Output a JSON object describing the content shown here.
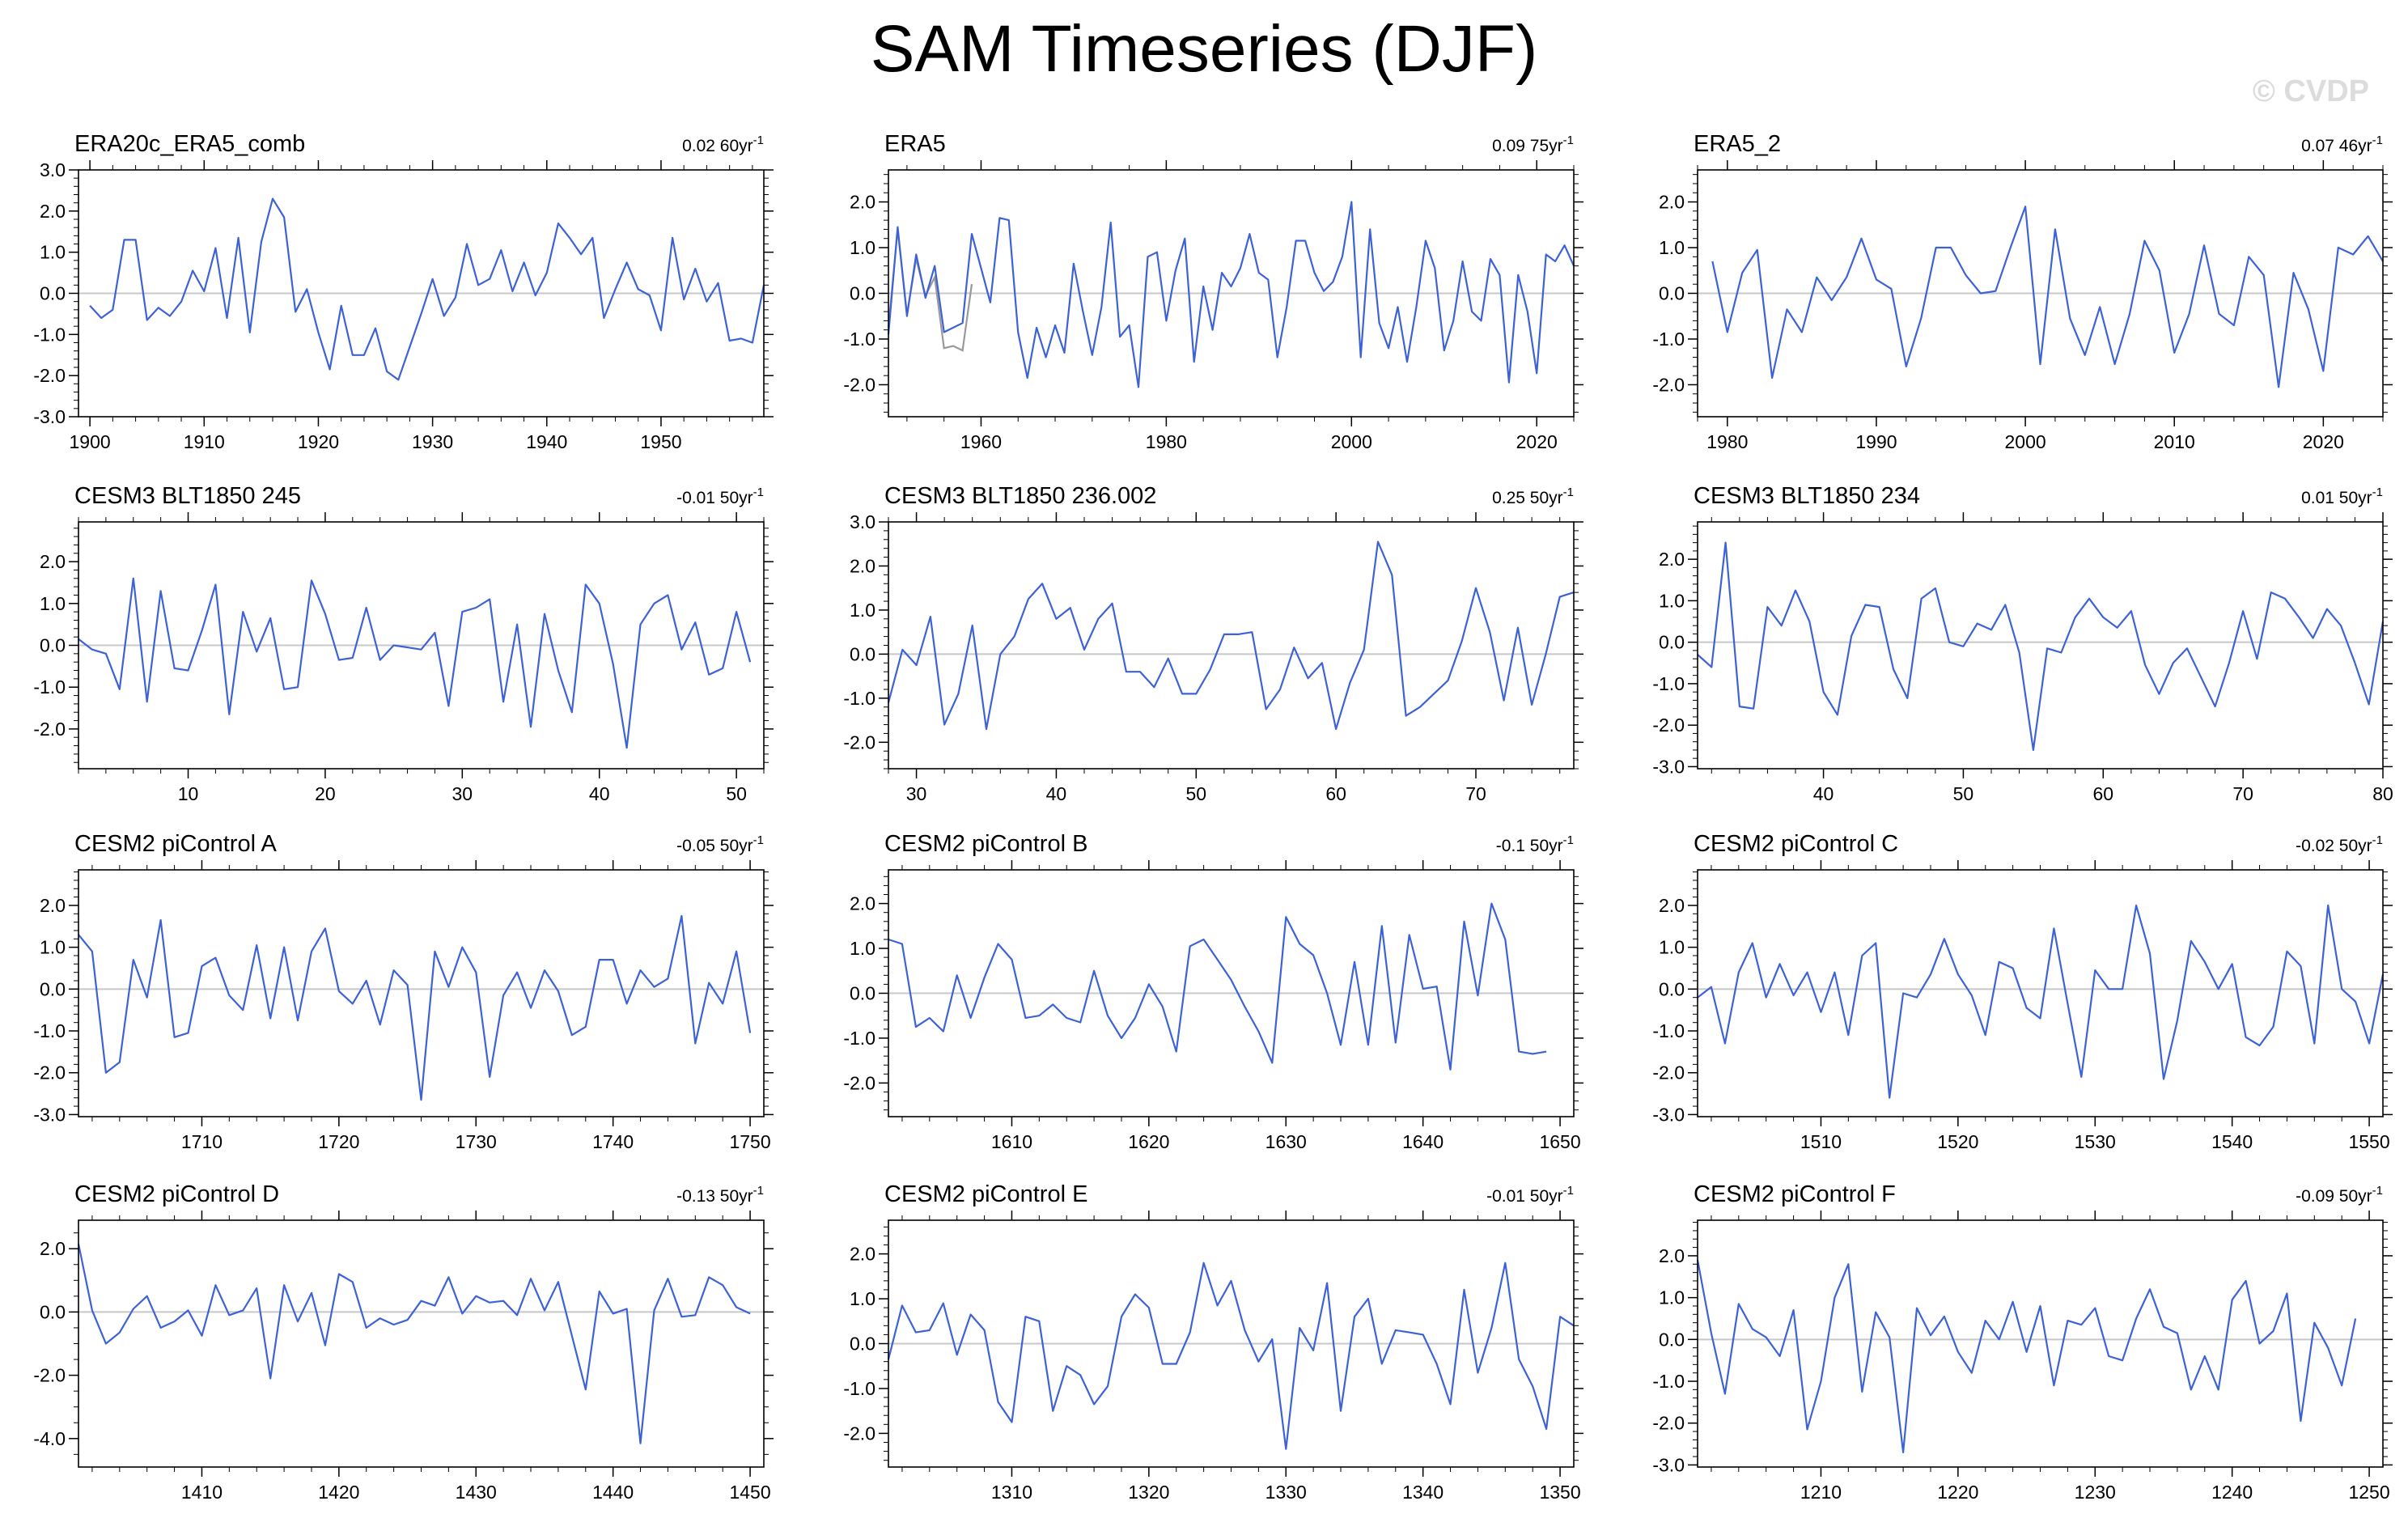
{
  "title": "SAM Timeseries (DJF)",
  "watermark": "© CVDP",
  "colors": {
    "line": "#3d62d6",
    "overlay": "#999999",
    "zero": "#c8c8c8",
    "frame": "#000000"
  },
  "chart_data": [
    {
      "type": "line",
      "title": "ERA20c_ERA5_comb",
      "trend": "0.02 60yr",
      "trend_exp": "-1",
      "xlim": [
        1899,
        1959
      ],
      "xticks": [
        1900,
        1910,
        1920,
        1930,
        1940,
        1950
      ],
      "ylim": [
        -3,
        3
      ],
      "yticks": [
        "3.0",
        "2.0",
        "1.0",
        "0.0",
        "-1.0",
        "-2.0",
        "-3.0"
      ],
      "x0": 1900,
      "values": [
        -0.3,
        -0.6,
        -0.4,
        1.3,
        1.3,
        -0.65,
        -0.35,
        -0.55,
        -0.2,
        0.55,
        0.05,
        1.1,
        -0.6,
        1.35,
        -0.95,
        1.25,
        2.3,
        1.85,
        -0.45,
        0.1,
        -0.95,
        -1.85,
        -0.3,
        -1.5,
        -1.5,
        -0.85,
        -1.9,
        -2.1,
        -1.3,
        -0.5,
        0.35,
        -0.55,
        -0.1,
        1.2,
        0.2,
        0.35,
        1.05,
        0.05,
        0.75,
        -0.05,
        0.5,
        1.7,
        1.35,
        0.95,
        1.35,
        -0.6,
        0.1,
        0.75,
        0.1,
        -0.05,
        -0.9,
        1.35,
        -0.15,
        0.6,
        -0.2,
        0.25,
        -1.15,
        -1.1,
        -1.2,
        0.2
      ]
    },
    {
      "type": "line",
      "title": "ERA5",
      "trend": "0.09 75yr",
      "trend_exp": "-1",
      "xlim": [
        1950,
        2024
      ],
      "xticks": [
        1960,
        1980,
        2000,
        2020
      ],
      "ylim": [
        -2.7,
        2.7
      ],
      "yticks": [
        "2.0",
        "1.0",
        "0.0",
        "-1.0",
        "-2.0"
      ],
      "x0": 1950,
      "values": [
        -0.9,
        1.45,
        -0.5,
        0.85,
        -0.1,
        0.6,
        -0.85,
        -0.75,
        -0.65,
        1.3,
        0.55,
        -0.2,
        1.65,
        1.6,
        -0.85,
        -1.85,
        -0.75,
        -1.4,
        -0.7,
        -1.3,
        0.65,
        -0.4,
        -1.35,
        -0.3,
        1.55,
        -0.95,
        -0.7,
        -2.05,
        0.8,
        0.9,
        -0.6,
        0.5,
        1.2,
        -1.5,
        0.15,
        -0.8,
        0.45,
        0.15,
        0.55,
        1.3,
        0.45,
        0.3,
        -1.4,
        -0.3,
        1.15,
        1.15,
        0.45,
        0.05,
        0.25,
        0.8,
        2.0,
        -1.4,
        1.4,
        -0.65,
        -1.2,
        -0.3,
        -1.5,
        -0.3,
        1.15,
        0.55,
        -1.25,
        -0.6,
        0.7,
        -0.4,
        -0.6,
        0.75,
        0.4,
        -1.95,
        0.4,
        -0.4,
        -1.75,
        0.85,
        0.7,
        1.05,
        0.6
      ],
      "overlay": {
        "x0": 1950,
        "values": [
          -0.75,
          1.4,
          -0.45,
          0.75,
          -0.05,
          0.35,
          -1.2,
          -1.15,
          -1.25,
          0.2
        ]
      }
    },
    {
      "type": "line",
      "title": "ERA5_2",
      "trend": "0.07 46yr",
      "trend_exp": "-1",
      "xlim": [
        1978,
        2024
      ],
      "xticks": [
        1980,
        1990,
        2000,
        2010,
        2020
      ],
      "ylim": [
        -2.7,
        2.7
      ],
      "yticks": [
        "2.0",
        "1.0",
        "0.0",
        "-1.0",
        "-2.0"
      ],
      "x0": 1979,
      "values": [
        0.7,
        -0.85,
        0.45,
        0.95,
        -1.85,
        -0.35,
        -0.85,
        0.35,
        -0.15,
        0.35,
        1.2,
        0.3,
        0.1,
        -1.6,
        -0.55,
        1.0,
        1.0,
        0.4,
        -0.0,
        0.05,
        1.0,
        1.9,
        -1.55,
        1.4,
        -0.55,
        -1.35,
        -0.3,
        -1.55,
        -0.45,
        1.15,
        0.5,
        -1.3,
        -0.45,
        1.05,
        -0.45,
        -0.7,
        0.8,
        0.4,
        -2.05,
        0.45,
        -0.35,
        -1.7,
        1.0,
        0.85,
        1.25,
        0.7
      ]
    },
    {
      "type": "line",
      "title": "CESM3 BLT1850 245",
      "trend": "-0.01 50yr",
      "trend_exp": "-1",
      "xlim": [
        2,
        52
      ],
      "xticks": [
        10,
        20,
        30,
        40,
        50
      ],
      "ylim": [
        -2.95,
        2.95
      ],
      "yticks": [
        "2.0",
        "1.0",
        "0.0",
        "-1.0",
        "-2.0"
      ],
      "x0": 2,
      "values": [
        0.15,
        -0.1,
        -0.2,
        -1.05,
        1.6,
        -1.35,
        1.3,
        -0.55,
        -0.6,
        0.35,
        1.45,
        -1.65,
        0.8,
        -0.15,
        0.65,
        -1.05,
        -1.0,
        1.55,
        0.75,
        -0.35,
        -0.3,
        0.9,
        -0.35,
        0.0,
        -0.05,
        -0.1,
        0.3,
        -1.45,
        0.8,
        0.9,
        1.1,
        -1.35,
        0.5,
        -1.95,
        0.75,
        -0.6,
        -1.6,
        1.45,
        1.0,
        -0.45,
        -2.45,
        0.5,
        1.0,
        1.2,
        -0.1,
        0.55,
        -0.7,
        -0.55,
        0.8,
        -0.4
      ]
    },
    {
      "type": "line",
      "title": "CESM3 BLT1850 236.002",
      "trend": "0.25 50yr",
      "trend_exp": "-1",
      "xlim": [
        28,
        77
      ],
      "xticks": [
        30,
        40,
        50,
        60,
        70
      ],
      "ylim": [
        -2.6,
        3.0
      ],
      "yticks": [
        "3.0",
        "2.0",
        "1.0",
        "0.0",
        "-1.0",
        "-2.0"
      ],
      "x0": 28,
      "values": [
        -1.1,
        0.1,
        -0.25,
        0.85,
        -1.6,
        -0.9,
        0.65,
        -1.7,
        -0.0,
        0.4,
        1.25,
        1.6,
        0.8,
        1.05,
        0.1,
        0.8,
        1.15,
        -0.4,
        -0.4,
        -0.75,
        -0.1,
        -0.9,
        -0.9,
        -0.35,
        0.45,
        0.45,
        0.5,
        -1.25,
        -0.8,
        0.15,
        -0.55,
        -0.2,
        -1.7,
        -0.65,
        0.1,
        2.55,
        1.8,
        -1.4,
        -1.2,
        -0.9,
        -0.6,
        0.3,
        1.5,
        0.5,
        -1.05,
        0.6,
        -1.15,
        0.0,
        1.3,
        1.4
      ]
    },
    {
      "type": "line",
      "title": "CESM3 BLT1850 234",
      "trend": "0.01 50yr",
      "trend_exp": "-1",
      "xlim": [
        31,
        80
      ],
      "xticks": [
        40,
        50,
        60,
        70,
        80
      ],
      "ylim": [
        -3.05,
        2.9
      ],
      "yticks": [
        "2.0",
        "1.0",
        "0.0",
        "-1.0",
        "-2.0",
        "-3.0"
      ],
      "x0": 31,
      "values": [
        -0.3,
        -0.6,
        2.4,
        -1.55,
        -1.6,
        0.85,
        0.4,
        1.25,
        0.5,
        -1.2,
        -1.75,
        0.15,
        0.9,
        0.85,
        -0.65,
        -1.35,
        1.05,
        1.3,
        0.0,
        -0.1,
        0.45,
        0.3,
        0.9,
        -0.25,
        -2.6,
        -0.15,
        -0.25,
        0.6,
        1.05,
        0.6,
        0.35,
        0.75,
        -0.55,
        -1.25,
        -0.5,
        -0.15,
        -0.85,
        -1.55,
        -0.5,
        0.75,
        -0.4,
        1.2,
        1.05,
        0.6,
        0.1,
        0.8,
        0.4,
        -0.5,
        -1.5,
        0.5
      ]
    },
    {
      "type": "line",
      "title": "CESM2 piControl A",
      "trend": "-0.05 50yr",
      "trend_exp": "-1",
      "xlim": [
        1701,
        1751
      ],
      "xticks": [
        1710,
        1720,
        1730,
        1740,
        1750
      ],
      "ylim": [
        -3.05,
        2.85
      ],
      "yticks": [
        "2.0",
        "1.0",
        "0.0",
        "-1.0",
        "-2.0",
        "-3.0"
      ],
      "x0": 1701,
      "values": [
        1.3,
        0.9,
        -2.0,
        -1.75,
        0.7,
        -0.2,
        1.65,
        -1.15,
        -1.05,
        0.55,
        0.75,
        -0.15,
        -0.5,
        1.05,
        -0.7,
        1.0,
        -0.75,
        0.9,
        1.45,
        -0.05,
        -0.35,
        0.2,
        -0.85,
        0.45,
        0.1,
        -2.65,
        0.9,
        0.05,
        1.0,
        0.4,
        -2.1,
        -0.15,
        0.4,
        -0.45,
        0.45,
        -0.05,
        -1.1,
        -0.9,
        0.7,
        0.7,
        -0.35,
        0.45,
        0.05,
        0.25,
        1.75,
        -1.3,
        0.15,
        -0.35,
        0.9,
        -1.05
      ]
    },
    {
      "type": "line",
      "title": "CESM2 piControl B",
      "trend": "-0.1 50yr",
      "trend_exp": "-1",
      "xlim": [
        1601,
        1651
      ],
      "xticks": [
        1610,
        1620,
        1630,
        1640,
        1650
      ],
      "ylim": [
        -2.75,
        2.75
      ],
      "yticks": [
        "2.0",
        "1.0",
        "0.0",
        "-1.0",
        "-2.0"
      ],
      "x0": 1601,
      "values": [
        1.2,
        1.1,
        -0.75,
        -0.55,
        -0.85,
        0.4,
        -0.55,
        0.35,
        1.1,
        0.75,
        -0.55,
        -0.5,
        -0.25,
        -0.55,
        -0.65,
        0.5,
        -0.5,
        -1.0,
        -0.55,
        0.2,
        -0.3,
        -1.3,
        1.05,
        1.2,
        0.75,
        0.3,
        -0.3,
        -0.85,
        -1.55,
        1.7,
        1.1,
        0.85,
        0.0,
        -1.15,
        0.7,
        -1.15,
        1.5,
        -1.1,
        1.3,
        0.1,
        0.15,
        -1.7,
        1.6,
        -0.05,
        2.0,
        1.2,
        -1.3,
        -1.35,
        -1.3
      ]
    },
    {
      "type": "line",
      "title": "CESM2 piControl C",
      "trend": "-0.02 50yr",
      "trend_exp": "-1",
      "xlim": [
        1501,
        1551
      ],
      "xticks": [
        1510,
        1520,
        1530,
        1540,
        1550
      ],
      "ylim": [
        -3.05,
        2.85
      ],
      "yticks": [
        "2.0",
        "1.0",
        "0.0",
        "-1.0",
        "-2.0",
        "-3.0"
      ],
      "x0": 1501,
      "values": [
        -0.2,
        0.05,
        -1.3,
        0.4,
        1.1,
        -0.2,
        0.6,
        -0.15,
        0.4,
        -0.55,
        0.4,
        -1.1,
        0.8,
        1.1,
        -2.6,
        -0.1,
        -0.2,
        0.35,
        1.2,
        0.35,
        -0.15,
        -1.1,
        0.65,
        0.5,
        -0.45,
        -0.7,
        1.45,
        -0.35,
        -2.1,
        0.45,
        0.0,
        0.0,
        2.0,
        0.85,
        -2.15,
        -0.75,
        1.15,
        0.65,
        0.0,
        0.6,
        -1.15,
        -1.35,
        -0.9,
        0.9,
        0.55,
        -1.3,
        2.0,
        -0.0,
        -0.3,
        -1.3,
        0.35
      ]
    },
    {
      "type": "line",
      "title": "CESM2 piControl D",
      "trend": "-0.13 50yr",
      "trend_exp": "-1",
      "xlim": [
        1401,
        1451
      ],
      "xticks": [
        1410,
        1420,
        1430,
        1440,
        1450
      ],
      "ylim": [
        -4.9,
        2.9
      ],
      "yticks": [
        "2.0",
        "0.0",
        "-2.0",
        "-4.0"
      ],
      "x0": 1401,
      "values": [
        2.15,
        0.05,
        -1.0,
        -0.65,
        0.1,
        0.5,
        -0.5,
        -0.3,
        0.05,
        -0.75,
        0.85,
        -0.1,
        0.05,
        0.75,
        -2.1,
        0.85,
        -0.3,
        0.6,
        -1.05,
        1.2,
        0.95,
        -0.5,
        -0.2,
        -0.4,
        -0.25,
        0.35,
        0.2,
        1.1,
        -0.05,
        0.5,
        0.3,
        0.35,
        -0.1,
        1.05,
        0.05,
        0.95,
        -0.75,
        -2.45,
        0.65,
        -0.05,
        0.1,
        -4.15,
        0.05,
        1.05,
        -0.15,
        -0.1,
        1.1,
        0.85,
        0.15,
        -0.05
      ]
    },
    {
      "type": "line",
      "title": "CESM2 piControl E",
      "trend": "-0.01 50yr",
      "trend_exp": "-1",
      "xlim": [
        1301,
        1351
      ],
      "xticks": [
        1310,
        1320,
        1330,
        1340,
        1350
      ],
      "ylim": [
        -2.75,
        2.75
      ],
      "yticks": [
        "2.0",
        "1.0",
        "0.0",
        "-1.0",
        "-2.0"
      ],
      "x0": 1301,
      "values": [
        -0.35,
        0.85,
        0.25,
        0.3,
        0.9,
        -0.25,
        0.65,
        0.3,
        -1.3,
        -1.75,
        0.6,
        0.5,
        -1.5,
        -0.5,
        -0.7,
        -1.35,
        -0.95,
        0.6,
        1.1,
        0.8,
        -0.45,
        -0.45,
        0.25,
        1.8,
        0.85,
        1.4,
        0.3,
        -0.4,
        0.1,
        -2.35,
        0.35,
        -0.15,
        1.35,
        -1.5,
        0.6,
        1.0,
        -0.45,
        0.3,
        0.25,
        0.2,
        -0.45,
        -1.35,
        1.2,
        -0.65,
        0.35,
        1.8,
        -0.35,
        -0.95,
        -1.9,
        0.6,
        0.4
      ]
    },
    {
      "type": "line",
      "title": "CESM2 piControl F",
      "trend": "-0.09 50yr",
      "trend_exp": "-1",
      "xlim": [
        1201,
        1251
      ],
      "xticks": [
        1210,
        1220,
        1230,
        1240,
        1250
      ],
      "ylim": [
        -3.05,
        2.85
      ],
      "yticks": [
        "2.0",
        "1.0",
        "0.0",
        "-1.0",
        "-2.0",
        "-3.0"
      ],
      "x0": 1201,
      "values": [
        1.9,
        0.15,
        -1.3,
        0.85,
        0.25,
        0.05,
        -0.4,
        0.7,
        -2.15,
        -1.0,
        1.0,
        1.8,
        -1.25,
        0.65,
        0.05,
        -2.7,
        0.75,
        0.1,
        0.55,
        -0.3,
        -0.8,
        0.45,
        0.0,
        0.9,
        -0.3,
        0.8,
        -1.1,
        0.45,
        0.35,
        0.75,
        -0.4,
        -0.5,
        0.5,
        1.2,
        0.3,
        0.15,
        -1.2,
        -0.4,
        -1.2,
        0.95,
        1.4,
        -0.1,
        0.2,
        1.1,
        -1.95,
        0.4,
        -0.2,
        -1.1,
        0.5
      ]
    }
  ]
}
